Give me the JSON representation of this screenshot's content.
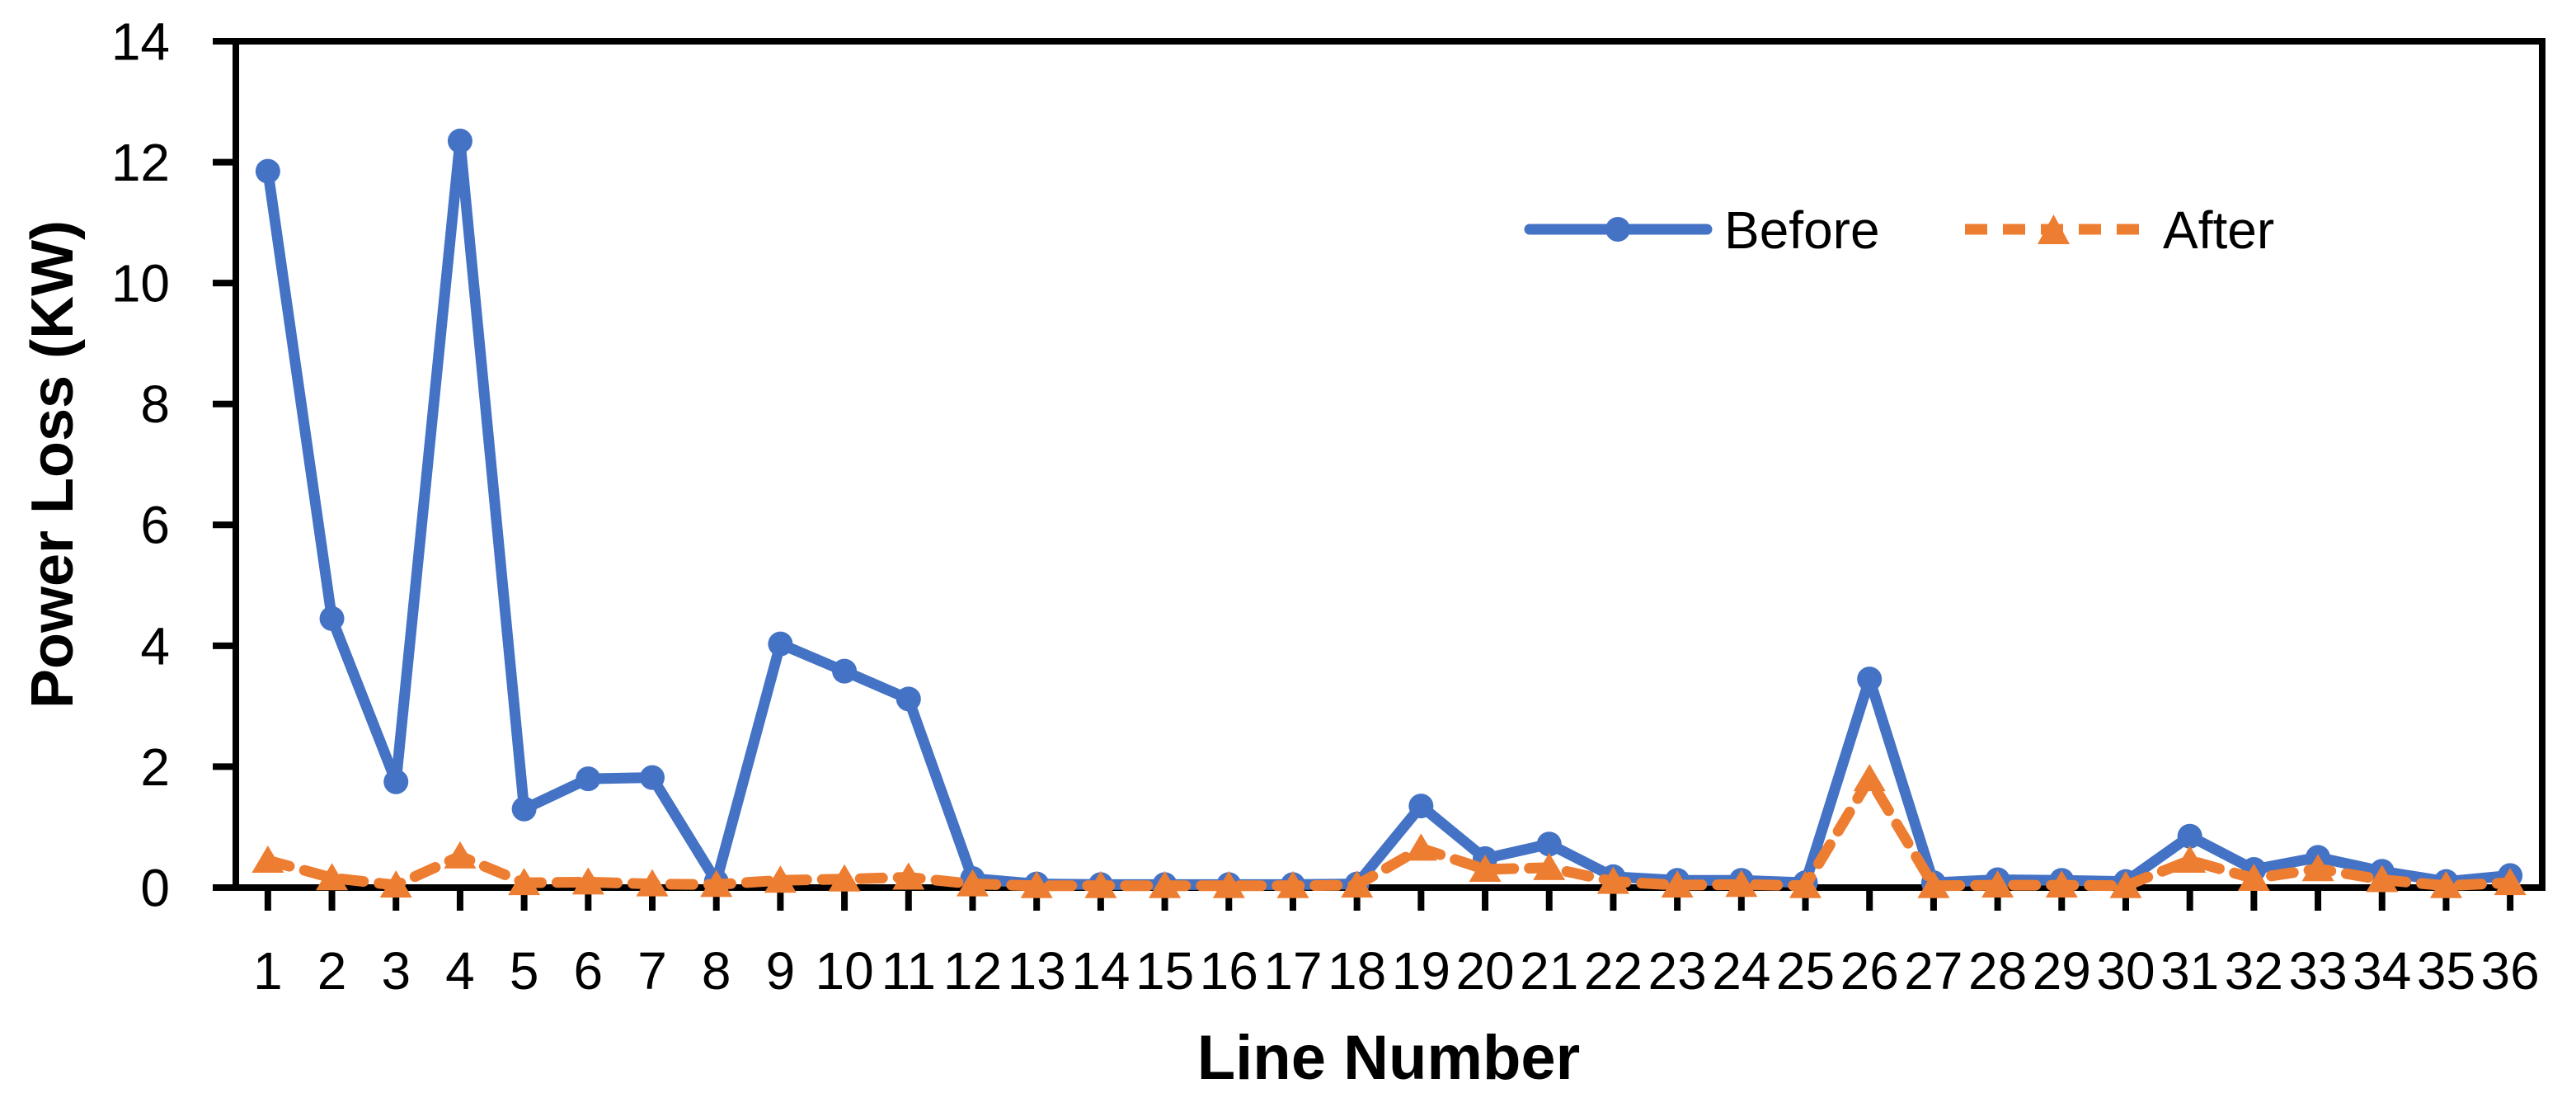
{
  "chart_data": {
    "type": "line",
    "title": "",
    "xlabel": "Line Number",
    "ylabel": "Power Loss (KW)",
    "ylim": [
      0,
      14
    ],
    "yticks": [
      0,
      2,
      4,
      6,
      8,
      10,
      12,
      14
    ],
    "grid": false,
    "plot_border": true,
    "background": "#FFFFFF",
    "axis_color": "#000000",
    "legend_position": "top-right-inside",
    "categories": [
      1,
      2,
      3,
      4,
      5,
      6,
      7,
      8,
      9,
      10,
      11,
      12,
      13,
      14,
      15,
      16,
      17,
      18,
      19,
      20,
      21,
      22,
      23,
      24,
      25,
      26,
      27,
      28,
      29,
      30,
      31,
      32,
      33,
      34,
      35,
      36
    ],
    "series": [
      {
        "name": "Before",
        "color": "#4472C4",
        "marker": "circle",
        "line_style": "solid",
        "values": [
          11.85,
          4.45,
          1.75,
          12.35,
          1.3,
          1.8,
          1.82,
          0.1,
          4.03,
          3.58,
          3.12,
          0.15,
          0.06,
          0.05,
          0.05,
          0.05,
          0.05,
          0.06,
          1.35,
          0.48,
          0.72,
          0.18,
          0.12,
          0.12,
          0.08,
          3.45,
          0.08,
          0.13,
          0.12,
          0.1,
          0.85,
          0.3,
          0.5,
          0.27,
          0.1,
          0.2
        ]
      },
      {
        "name": "After",
        "color": "#ED7D31",
        "marker": "triangle",
        "line_style": "dashed",
        "values": [
          0.45,
          0.16,
          0.04,
          0.52,
          0.08,
          0.09,
          0.06,
          0.05,
          0.12,
          0.14,
          0.17,
          0.06,
          0.03,
          0.03,
          0.03,
          0.03,
          0.03,
          0.04,
          0.65,
          0.3,
          0.33,
          0.1,
          0.04,
          0.05,
          0.03,
          1.8,
          0.03,
          0.04,
          0.04,
          0.03,
          0.45,
          0.15,
          0.31,
          0.13,
          0.03,
          0.08
        ]
      }
    ]
  }
}
